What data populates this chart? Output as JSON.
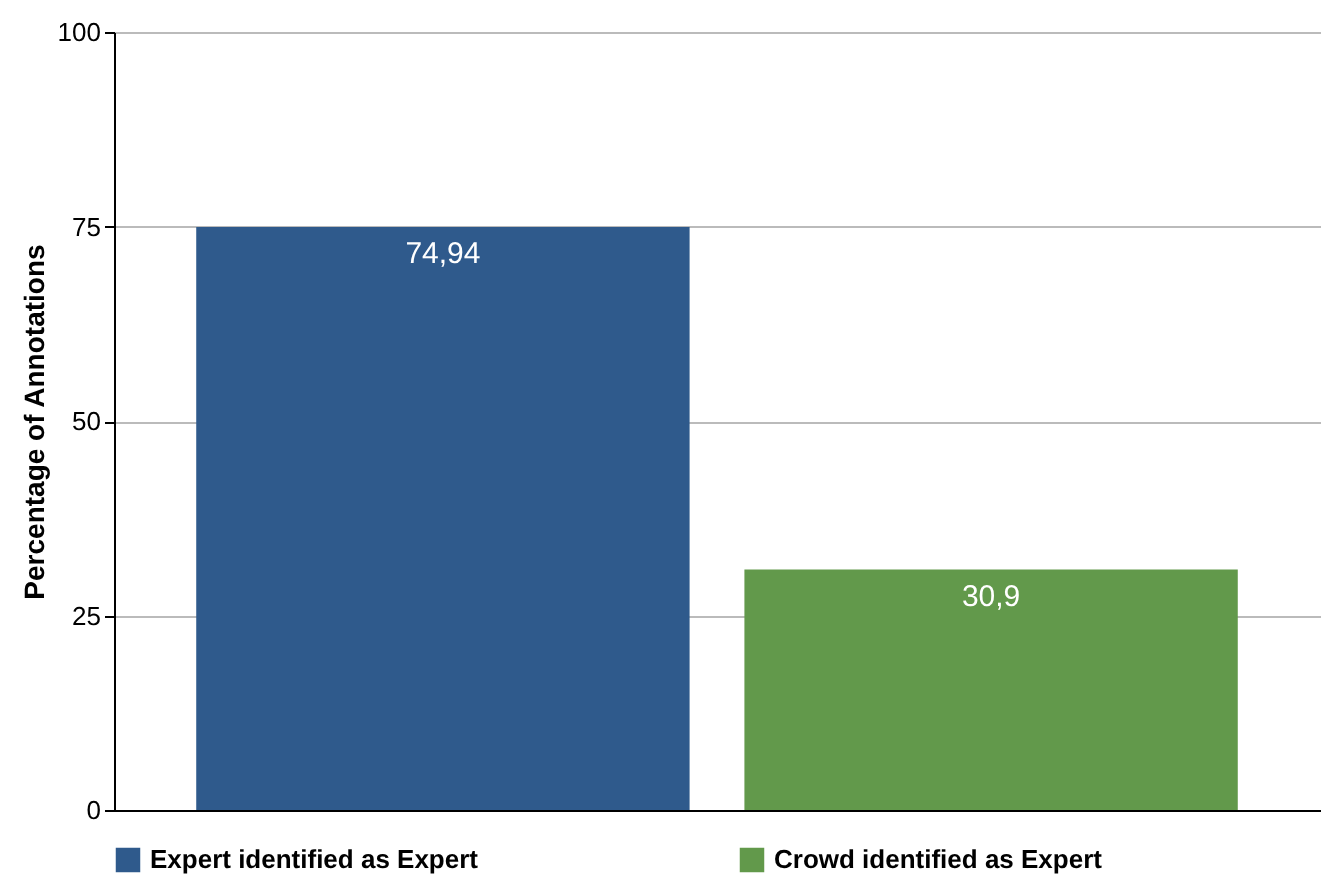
{
  "chart_data": {
    "type": "bar",
    "ylabel": "Percentage of Annotations",
    "categories": [
      null,
      null
    ],
    "series": [
      {
        "name": "Expert identified as Expert",
        "color": "#2f5a8c",
        "values": [
          74.94,
          null
        ],
        "value_labels": [
          "74,94",
          null
        ]
      },
      {
        "name": "Crowd identified as Expert",
        "color": "#62994b",
        "values": [
          null,
          30.9
        ],
        "value_labels": [
          null,
          "30,9"
        ]
      }
    ],
    "ylim": [
      0,
      100
    ],
    "yticks": [
      0,
      25,
      50,
      75,
      100
    ],
    "grid": "y",
    "legend": "bottom"
  }
}
